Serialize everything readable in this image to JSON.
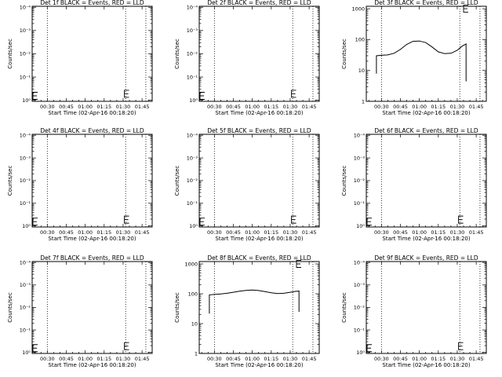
{
  "chart_data": [
    {
      "type": "line",
      "title": "Det 1f BLACK = Events, RED = LLD",
      "xlabel": "Start Time (02-Apr-16 00:18:20)",
      "ylabel": "Counts/sec",
      "scale": "log",
      "ylim": [
        0.9,
        11000
      ],
      "x_ticks": [
        "00:30",
        "00:45",
        "01:00",
        "01:15",
        "01:30",
        "01:45"
      ],
      "y_ticks": [
        {
          "v": 1,
          "t": "10⁰"
        },
        {
          "v": 10,
          "t": "10⁻¹"
        },
        {
          "v": 100,
          "t": "10⁻²"
        },
        {
          "v": 1000,
          "t": "10⁻³"
        },
        {
          "v": 10000,
          "t": "10⁻⁴"
        }
      ],
      "dotted_lines": [
        "00:30",
        "01:32",
        "01:48"
      ],
      "events_series": [],
      "e_marks": [
        [
          "00:18",
          1.55
        ],
        [
          "01:31",
          1.9
        ]
      ]
    },
    {
      "type": "line",
      "title": "Det 2f BLACK = Events, RED = LLD",
      "xlabel": "Start Time (02-Apr-16 00:18:20)",
      "ylabel": "Counts/sec",
      "scale": "log",
      "ylim": [
        0.9,
        11000
      ],
      "x_ticks": [
        "00:30",
        "00:45",
        "01:00",
        "01:15",
        "01:30",
        "01:45"
      ],
      "y_ticks": [
        {
          "v": 1,
          "t": "10⁰"
        },
        {
          "v": 10,
          "t": "10⁻¹"
        },
        {
          "v": 100,
          "t": "10⁻²"
        },
        {
          "v": 1000,
          "t": "10⁻³"
        },
        {
          "v": 10000,
          "t": "10⁻⁴"
        }
      ],
      "dotted_lines": [
        "00:30",
        "01:32",
        "01:48"
      ],
      "events_series": [],
      "e_marks": [
        [
          "00:18",
          1.55
        ],
        [
          "01:31",
          1.9
        ]
      ]
    },
    {
      "type": "line",
      "title": "Det 3f BLACK = Events, RED = LLD",
      "xlabel": "Start Time (02-Apr-16 00:18:20)",
      "ylabel": "Counts/sec",
      "scale": "log",
      "ylim": [
        1,
        1200
      ],
      "x_ticks": [
        "00:30",
        "00:45",
        "01:00",
        "01:15",
        "01:30",
        "01:45"
      ],
      "y_ticks": [
        {
          "v": 1,
          "t": "1"
        },
        {
          "v": 10,
          "t": "10"
        },
        {
          "v": 100,
          "t": "100"
        },
        {
          "v": 1000,
          "t": "1000"
        }
      ],
      "dotted_lines": [
        "00:30",
        "01:32",
        "01:48"
      ],
      "events_series": [
        [
          "00:26",
          8
        ],
        [
          "00:26",
          30
        ],
        [
          "00:30",
          31
        ],
        [
          "00:35",
          32
        ],
        [
          "00:40",
          36
        ],
        [
          "00:45",
          48
        ],
        [
          "00:50",
          70
        ],
        [
          "00:55",
          88
        ],
        [
          "01:00",
          90
        ],
        [
          "01:05",
          80
        ],
        [
          "01:10",
          58
        ],
        [
          "01:15",
          40
        ],
        [
          "01:20",
          35
        ],
        [
          "01:25",
          36
        ],
        [
          "01:30",
          45
        ],
        [
          "01:34",
          62
        ],
        [
          "01:37",
          72
        ],
        [
          "01:37",
          4.5
        ]
      ],
      "e_marks": [
        [
          "01:35",
          1000
        ]
      ]
    },
    {
      "type": "line",
      "title": "Det 4f BLACK = Events, RED = LLD",
      "xlabel": "Start Time (02-Apr-16 00:18:20)",
      "ylabel": "Counts/sec",
      "scale": "log",
      "ylim": [
        0.9,
        11000
      ],
      "x_ticks": [
        "00:30",
        "00:45",
        "01:00",
        "01:15",
        "01:30",
        "01:45"
      ],
      "y_ticks": [
        {
          "v": 1,
          "t": "10⁰"
        },
        {
          "v": 10,
          "t": "10⁻¹"
        },
        {
          "v": 100,
          "t": "10⁻²"
        },
        {
          "v": 1000,
          "t": "10⁻³"
        },
        {
          "v": 10000,
          "t": "10⁻⁴"
        }
      ],
      "dotted_lines": [
        "00:30",
        "01:32",
        "01:48"
      ],
      "events_series": [],
      "e_marks": [
        [
          "00:18",
          1.55
        ],
        [
          "01:31",
          1.9
        ]
      ]
    },
    {
      "type": "line",
      "title": "Det 5f BLACK = Events, RED = LLD",
      "xlabel": "Start Time (02-Apr-16 00:18:20)",
      "ylabel": "Counts/sec",
      "scale": "log",
      "ylim": [
        0.9,
        11000
      ],
      "x_ticks": [
        "00:30",
        "00:45",
        "01:00",
        "01:15",
        "01:30",
        "01:45"
      ],
      "y_ticks": [
        {
          "v": 1,
          "t": "10⁰"
        },
        {
          "v": 10,
          "t": "10⁻¹"
        },
        {
          "v": 100,
          "t": "10⁻²"
        },
        {
          "v": 1000,
          "t": "10⁻³"
        },
        {
          "v": 10000,
          "t": "10⁻⁴"
        }
      ],
      "dotted_lines": [
        "00:30",
        "01:32",
        "01:48"
      ],
      "events_series": [],
      "e_marks": [
        [
          "00:18",
          1.55
        ],
        [
          "01:31",
          1.9
        ]
      ]
    },
    {
      "type": "line",
      "title": "Det 6f BLACK = Events, RED = LLD",
      "xlabel": "Start Time (02-Apr-16 00:18:20)",
      "ylabel": "Counts/sec",
      "scale": "log",
      "ylim": [
        0.9,
        11000
      ],
      "x_ticks": [
        "00:30",
        "00:45",
        "01:00",
        "01:15",
        "01:30",
        "01:45"
      ],
      "y_ticks": [
        {
          "v": 1,
          "t": "10⁰"
        },
        {
          "v": 10,
          "t": "10⁻¹"
        },
        {
          "v": 100,
          "t": "10⁻²"
        },
        {
          "v": 1000,
          "t": "10⁻³"
        },
        {
          "v": 10000,
          "t": "10⁻⁴"
        }
      ],
      "dotted_lines": [
        "00:30",
        "01:32",
        "01:48"
      ],
      "events_series": [],
      "e_marks": [
        [
          "00:18",
          1.55
        ],
        [
          "01:31",
          1.9
        ]
      ]
    },
    {
      "type": "line",
      "title": "Det 7f BLACK = Events, RED = LLD",
      "xlabel": "Start Time (02-Apr-16 00:18:20)",
      "ylabel": "Counts/sec",
      "scale": "log",
      "ylim": [
        0.9,
        11000
      ],
      "x_ticks": [
        "00:30",
        "00:45",
        "01:00",
        "01:15",
        "01:30",
        "01:45"
      ],
      "y_ticks": [
        {
          "v": 1,
          "t": "10⁰"
        },
        {
          "v": 10,
          "t": "10⁻¹"
        },
        {
          "v": 100,
          "t": "10⁻²"
        },
        {
          "v": 1000,
          "t": "10⁻³"
        },
        {
          "v": 10000,
          "t": "10⁻⁴"
        }
      ],
      "dotted_lines": [
        "00:30",
        "01:32",
        "01:48"
      ],
      "events_series": [],
      "e_marks": [
        [
          "00:18",
          1.55
        ],
        [
          "01:31",
          1.9
        ]
      ]
    },
    {
      "type": "line",
      "title": "Det 8f BLACK = Events, RED = LLD",
      "xlabel": "Start Time (02-Apr-16 00:18:20)",
      "ylabel": "Counts/sec",
      "scale": "log",
      "ylim": [
        1,
        1200
      ],
      "x_ticks": [
        "00:30",
        "00:45",
        "01:00",
        "01:15",
        "01:30",
        "01:45"
      ],
      "y_ticks": [
        {
          "v": 1,
          "t": "1"
        },
        {
          "v": 10,
          "t": "10"
        },
        {
          "v": 100,
          "t": "100"
        },
        {
          "v": 1000,
          "t": "1000"
        }
      ],
      "dotted_lines": [
        "00:30",
        "01:32",
        "01:48"
      ],
      "events_series": [
        [
          "00:26",
          22
        ],
        [
          "00:26",
          92
        ],
        [
          "00:30",
          95
        ],
        [
          "00:35",
          98
        ],
        [
          "00:40",
          104
        ],
        [
          "00:45",
          112
        ],
        [
          "00:50",
          122
        ],
        [
          "00:55",
          130
        ],
        [
          "01:00",
          133
        ],
        [
          "01:05",
          128
        ],
        [
          "01:10",
          118
        ],
        [
          "01:15",
          108
        ],
        [
          "01:20",
          102
        ],
        [
          "01:25",
          104
        ],
        [
          "01:30",
          112
        ],
        [
          "01:34",
          120
        ],
        [
          "01:37",
          123
        ],
        [
          "01:37",
          25
        ]
      ],
      "e_marks": [
        [
          "01:35",
          1000
        ]
      ]
    },
    {
      "type": "line",
      "title": "Det 9f BLACK = Events, RED = LLD",
      "xlabel": "Start Time (02-Apr-16 00:18:20)",
      "ylabel": "Counts/sec",
      "scale": "log",
      "ylim": [
        0.9,
        11000
      ],
      "x_ticks": [
        "00:30",
        "00:45",
        "01:00",
        "01:15",
        "01:30",
        "01:45"
      ],
      "y_ticks": [
        {
          "v": 1,
          "t": "10⁰"
        },
        {
          "v": 10,
          "t": "10⁻¹"
        },
        {
          "v": 100,
          "t": "10⁻²"
        },
        {
          "v": 1000,
          "t": "10⁻³"
        },
        {
          "v": 10000,
          "t": "10⁻⁴"
        }
      ],
      "dotted_lines": [
        "00:30",
        "01:32",
        "01:48"
      ],
      "events_series": [],
      "e_marks": [
        [
          "00:18",
          1.55
        ],
        [
          "01:31",
          1.9
        ]
      ]
    }
  ]
}
